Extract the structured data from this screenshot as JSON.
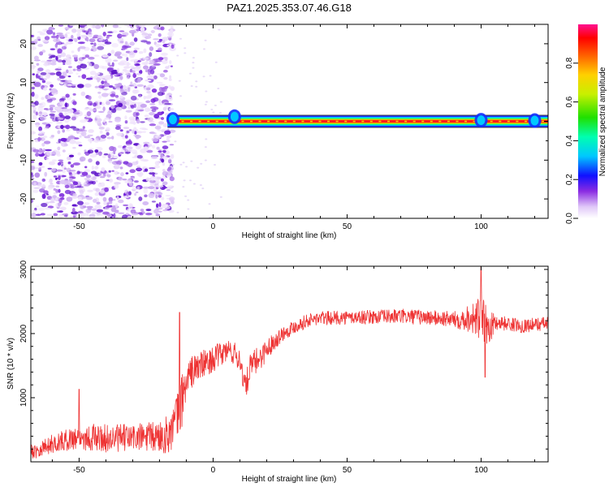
{
  "title": "PAZ1.2025.353.07.46.G18",
  "chart_data": [
    {
      "type": "heatmap",
      "xlabel": "Height of straight line (km)",
      "ylabel": "Frequency (Hz)",
      "xlim": [
        -68,
        125
      ],
      "ylim": [
        -25,
        25
      ],
      "xticks": [
        -50,
        0,
        50,
        100
      ],
      "yticks": [
        -20,
        -10,
        0,
        10,
        20
      ],
      "colorbar": {
        "label": "Normalized spectral amplitude",
        "range": [
          0,
          1
        ],
        "ticks": [
          "0.0",
          "0.2",
          "0.4",
          "0.6",
          "0.8"
        ]
      },
      "noise_region": {
        "x_from": -68,
        "x_to": -17,
        "amplitude_range": [
          0,
          0.2
        ]
      },
      "carrier_line": {
        "frequency_hz": 0,
        "x_from": -17,
        "x_to": 125,
        "peak_amplitude": 1.0
      },
      "hotspots": [
        {
          "x": -15,
          "freq": 0.5,
          "amplitude": 0.35
        },
        {
          "x": 8,
          "freq": 1.2,
          "amplitude": 0.3
        },
        {
          "x": 100,
          "freq": 0.3,
          "amplitude": 0.3
        },
        {
          "x": 120,
          "freq": 0.2,
          "amplitude": 0.25
        }
      ]
    },
    {
      "type": "line",
      "xlabel": "Height of straight line (km)",
      "ylabel": "SNR (10 * v/v)",
      "xlim": [
        -68,
        125
      ],
      "ylim": [
        0,
        3050
      ],
      "xticks": [
        -50,
        0,
        50,
        100
      ],
      "yticks": [
        1000,
        2000,
        3000
      ],
      "series": [
        {
          "name": "SNR",
          "color": "#ee3333",
          "x": [
            -68,
            -60,
            -52,
            -45,
            -38,
            -30,
            -22,
            -17,
            -14,
            -12,
            -10,
            -8,
            -5,
            -2,
            2,
            6,
            10,
            12,
            14,
            18,
            22,
            26,
            30,
            35,
            40,
            50,
            60,
            70,
            80,
            90,
            97,
            100,
            103,
            106,
            110,
            115,
            120,
            125
          ],
          "values": [
            150,
            280,
            370,
            380,
            360,
            380,
            380,
            420,
            600,
            900,
            1250,
            1400,
            1500,
            1550,
            1650,
            1750,
            1600,
            1150,
            1480,
            1650,
            1850,
            2000,
            2100,
            2200,
            2240,
            2250,
            2260,
            2270,
            2250,
            2220,
            2250,
            2200,
            2100,
            2180,
            2150,
            2120,
            2140,
            2160
          ],
          "noise_amplitude": [
            120,
            150,
            180,
            220,
            220,
            220,
            250,
            300,
            400,
            450,
            300,
            260,
            250,
            200,
            200,
            180,
            200,
            200,
            220,
            200,
            140,
            120,
            110,
            110,
            110,
            110,
            110,
            120,
            120,
            130,
            250,
            400,
            250,
            130,
            110,
            110,
            110,
            110
          ],
          "spikes": [
            {
              "x": -12.5,
              "value": 2330
            },
            {
              "x": -50,
              "value": 1130
            },
            {
              "x": 100,
              "value": 3050
            },
            {
              "x": 101.5,
              "value": 1320
            }
          ]
        }
      ]
    }
  ]
}
